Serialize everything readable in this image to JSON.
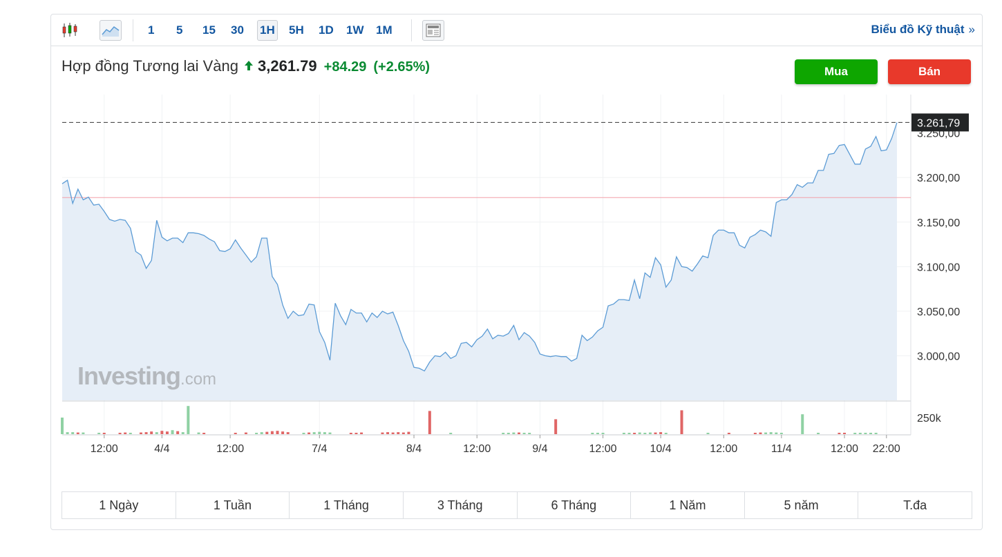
{
  "toolbar": {
    "intervals": [
      "1",
      "5",
      "15",
      "30",
      "1H",
      "5H",
      "1D",
      "1W",
      "1M"
    ],
    "active_interval": "1H",
    "tech_chart_label": "Biểu đồ Kỹ thuật",
    "tech_chart_arrows": "»"
  },
  "header": {
    "instrument": "Hợp đồng Tương lai Vàng",
    "price": "3,261.79",
    "change": "+84.29",
    "change_pct": "(+2.65%)"
  },
  "actions": {
    "buy": "Mua",
    "sell": "Bán"
  },
  "watermark": {
    "brand": "Investing",
    "suffix": ".com"
  },
  "colors": {
    "line": "#5b9bd5",
    "area": "#e6eef7",
    "up_volume": "#8fd1a3",
    "down_volume": "#e06666",
    "ref_line": "#f2a0a8",
    "buy": "#0ea600",
    "sell": "#e8392b"
  },
  "ranges": [
    "1 Ngày",
    "1 Tuần",
    "1 Tháng",
    "3 Tháng",
    "6 Tháng",
    "1 Năm",
    "5 năm",
    "T.đa"
  ],
  "chart_data": {
    "type": "area",
    "y_ticks": [
      "3.200,00",
      "3.150,00",
      "3.100,00",
      "3.050,00",
      "3.000,00"
    ],
    "y_tick_values": [
      3200,
      3150,
      3100,
      3050,
      3000
    ],
    "ylim": [
      2950,
      3290
    ],
    "last_price_label": "3.261,79",
    "last_price": 3261.79,
    "previous_close": 3177.5,
    "volume_tick": "250k",
    "x_ticks": [
      {
        "label": "12:00",
        "i": 8
      },
      {
        "label": "4/4",
        "i": 19
      },
      {
        "label": "12:00",
        "i": 32
      },
      {
        "label": "7/4",
        "i": 49
      },
      {
        "label": "8/4",
        "i": 67
      },
      {
        "label": "12:00",
        "i": 79
      },
      {
        "label": "9/4",
        "i": 91
      },
      {
        "label": "12:00",
        "i": 103
      },
      {
        "label": "10/4",
        "i": 114
      },
      {
        "label": "12:00",
        "i": 126
      },
      {
        "label": "11/4",
        "i": 137
      },
      {
        "label": "12:00",
        "i": 149
      },
      {
        "label": "22:00",
        "i": 157
      }
    ],
    "values": [
      3193,
      3197,
      3171,
      3187,
      3175,
      3178,
      3169,
      3170,
      3162,
      3153,
      3151,
      3153,
      3152,
      3143,
      3117,
      3113,
      3098,
      3107,
      3152,
      3133,
      3129,
      3132,
      3132,
      3127,
      3138,
      3138,
      3137,
      3135,
      3131,
      3128,
      3118,
      3117,
      3120,
      3130,
      3121,
      3113,
      3105,
      3111,
      3132,
      3132,
      3089,
      3080,
      3057,
      3042,
      3050,
      3045,
      3046,
      3058,
      3057,
      3027,
      3015,
      2995,
      3059,
      3045,
      3035,
      3052,
      3048,
      3048,
      3038,
      3048,
      3043,
      3050,
      3047,
      3049,
      3034,
      3017,
      3005,
      2987,
      2986,
      2983,
      2993,
      3000,
      2999,
      3004,
      2997,
      3000,
      3014,
      3015,
      3010,
      3018,
      3022,
      3030,
      3019,
      3023,
      3022,
      3025,
      3034,
      3018,
      3026,
      3022,
      3015,
      3002,
      3000,
      2999,
      3000,
      2999,
      2999,
      2994,
      2997,
      3023,
      3017,
      3021,
      3028,
      3032,
      3056,
      3058,
      3063,
      3063,
      3062,
      3085,
      3064,
      3093,
      3088,
      3110,
      3102,
      3077,
      3085,
      3111,
      3100,
      3099,
      3095,
      3103,
      3112,
      3110,
      3135,
      3141,
      3141,
      3138,
      3138,
      3124,
      3121,
      3133,
      3136,
      3141,
      3139,
      3134,
      3172,
      3175,
      3175,
      3181,
      3192,
      3189,
      3194,
      3194,
      3208,
      3208,
      3226,
      3227,
      3236,
      3237,
      3226,
      3215,
      3215,
      3232,
      3235,
      3246,
      3230,
      3231,
      3244,
      3261.79
    ],
    "volume": [
      {
        "i": 0,
        "v": 50,
        "up": true
      },
      {
        "i": 1,
        "v": 6,
        "up": true
      },
      {
        "i": 2,
        "v": 6,
        "up": true
      },
      {
        "i": 3,
        "v": 5,
        "up": false
      },
      {
        "i": 4,
        "v": 5,
        "up": true
      },
      {
        "i": 7,
        "v": 4,
        "up": true
      },
      {
        "i": 8,
        "v": 4,
        "up": false
      },
      {
        "i": 11,
        "v": 4,
        "up": false
      },
      {
        "i": 12,
        "v": 5,
        "up": false
      },
      {
        "i": 13,
        "v": 4,
        "up": true
      },
      {
        "i": 15,
        "v": 5,
        "up": false
      },
      {
        "i": 16,
        "v": 6,
        "up": false
      },
      {
        "i": 17,
        "v": 8,
        "up": false
      },
      {
        "i": 18,
        "v": 6,
        "up": true
      },
      {
        "i": 19,
        "v": 10,
        "up": false
      },
      {
        "i": 20,
        "v": 8,
        "up": false
      },
      {
        "i": 21,
        "v": 12,
        "up": true
      },
      {
        "i": 22,
        "v": 9,
        "up": false
      },
      {
        "i": 23,
        "v": 6,
        "up": true
      },
      {
        "i": 24,
        "v": 85,
        "up": true
      },
      {
        "i": 26,
        "v": 5,
        "up": true
      },
      {
        "i": 27,
        "v": 4,
        "up": false
      },
      {
        "i": 33,
        "v": 4,
        "up": false
      },
      {
        "i": 35,
        "v": 5,
        "up": false
      },
      {
        "i": 37,
        "v": 4,
        "up": true
      },
      {
        "i": 38,
        "v": 6,
        "up": true
      },
      {
        "i": 39,
        "v": 7,
        "up": false
      },
      {
        "i": 40,
        "v": 9,
        "up": false
      },
      {
        "i": 41,
        "v": 10,
        "up": false
      },
      {
        "i": 42,
        "v": 8,
        "up": false
      },
      {
        "i": 43,
        "v": 6,
        "up": false
      },
      {
        "i": 46,
        "v": 4,
        "up": true
      },
      {
        "i": 47,
        "v": 5,
        "up": false
      },
      {
        "i": 48,
        "v": 6,
        "up": true
      },
      {
        "i": 49,
        "v": 7,
        "up": true
      },
      {
        "i": 50,
        "v": 6,
        "up": true
      },
      {
        "i": 51,
        "v": 5,
        "up": true
      },
      {
        "i": 55,
        "v": 4,
        "up": false
      },
      {
        "i": 56,
        "v": 4,
        "up": false
      },
      {
        "i": 57,
        "v": 5,
        "up": false
      },
      {
        "i": 61,
        "v": 5,
        "up": false
      },
      {
        "i": 62,
        "v": 6,
        "up": false
      },
      {
        "i": 63,
        "v": 5,
        "up": false
      },
      {
        "i": 64,
        "v": 6,
        "up": false
      },
      {
        "i": 65,
        "v": 5,
        "up": false
      },
      {
        "i": 66,
        "v": 7,
        "up": false
      },
      {
        "i": 70,
        "v": 70,
        "up": false
      },
      {
        "i": 74,
        "v": 4,
        "up": true
      },
      {
        "i": 84,
        "v": 4,
        "up": true
      },
      {
        "i": 85,
        "v": 4,
        "up": true
      },
      {
        "i": 86,
        "v": 5,
        "up": true
      },
      {
        "i": 87,
        "v": 5,
        "up": false
      },
      {
        "i": 88,
        "v": 4,
        "up": true
      },
      {
        "i": 89,
        "v": 4,
        "up": true
      },
      {
        "i": 94,
        "v": 45,
        "up": false
      },
      {
        "i": 101,
        "v": 4,
        "up": true
      },
      {
        "i": 102,
        "v": 4,
        "up": true
      },
      {
        "i": 103,
        "v": 4,
        "up": true
      },
      {
        "i": 107,
        "v": 4,
        "up": true
      },
      {
        "i": 108,
        "v": 4,
        "up": true
      },
      {
        "i": 109,
        "v": 4,
        "up": false
      },
      {
        "i": 110,
        "v": 5,
        "up": true
      },
      {
        "i": 111,
        "v": 4,
        "up": true
      },
      {
        "i": 112,
        "v": 5,
        "up": true
      },
      {
        "i": 113,
        "v": 5,
        "up": false
      },
      {
        "i": 114,
        "v": 6,
        "up": false
      },
      {
        "i": 115,
        "v": 4,
        "up": true
      },
      {
        "i": 118,
        "v": 72,
        "up": false
      },
      {
        "i": 123,
        "v": 4,
        "up": true
      },
      {
        "i": 127,
        "v": 4,
        "up": false
      },
      {
        "i": 132,
        "v": 4,
        "up": false
      },
      {
        "i": 133,
        "v": 5,
        "up": false
      },
      {
        "i": 134,
        "v": 5,
        "up": true
      },
      {
        "i": 135,
        "v": 6,
        "up": true
      },
      {
        "i": 136,
        "v": 5,
        "up": true
      },
      {
        "i": 137,
        "v": 4,
        "up": true
      },
      {
        "i": 141,
        "v": 60,
        "up": true
      },
      {
        "i": 144,
        "v": 4,
        "up": true
      },
      {
        "i": 148,
        "v": 4,
        "up": false
      },
      {
        "i": 149,
        "v": 4,
        "up": false
      },
      {
        "i": 151,
        "v": 4,
        "up": true
      },
      {
        "i": 152,
        "v": 4,
        "up": true
      },
      {
        "i": 153,
        "v": 4,
        "up": true
      },
      {
        "i": 154,
        "v": 4,
        "up": true
      },
      {
        "i": 155,
        "v": 4,
        "up": true
      }
    ]
  }
}
